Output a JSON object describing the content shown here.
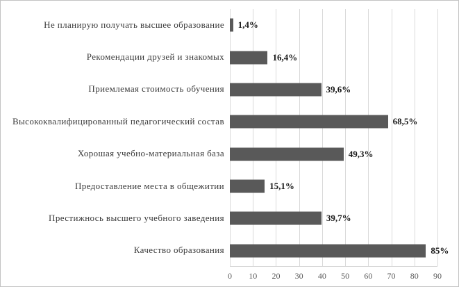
{
  "chart_data": {
    "type": "bar",
    "orientation": "horizontal",
    "title": "",
    "xlabel": "",
    "ylabel": "",
    "categories": [
      "Не планирую получать высшее образование",
      "Рекомендации друзей и знакомых",
      "Приемлемая стоимость обучения",
      "Высококвалифицированный педагогический состав",
      "Хорошая учебно-материальная база",
      "Предоставление места в общежитии",
      "Престижнось высшего учебного заведения",
      "Качество образования"
    ],
    "values": [
      1.4,
      16.4,
      39.6,
      68.5,
      49.3,
      15.1,
      39.7,
      85
    ],
    "value_labels": [
      "1,4%",
      "16,4%",
      "39,6%",
      "68,5%",
      "49,3%",
      "15,1%",
      "39,7%",
      "85%"
    ],
    "xlim": [
      0,
      90
    ],
    "x_ticks": [
      0,
      10,
      20,
      30,
      40,
      50,
      60,
      70,
      80,
      90
    ],
    "grid": true,
    "legend": "none",
    "bar_color": "#595959",
    "gridline_color": "#d9d9d9"
  }
}
